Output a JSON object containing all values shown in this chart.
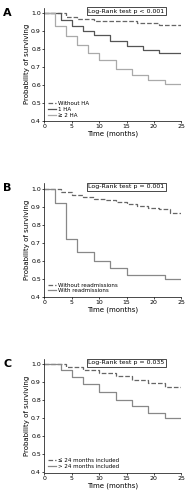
{
  "panel_A": {
    "title": "Log-Rank test p < 0.001",
    "label": "A",
    "ylim": [
      0.4,
      1.03
    ],
    "xlim": [
      0,
      25
    ],
    "xticks": [
      0,
      5,
      10,
      15,
      20,
      25
    ],
    "yticks": [
      0.4,
      0.5,
      0.6,
      0.7,
      0.8,
      0.9,
      1.0
    ],
    "curves": [
      {
        "name": "Without HA",
        "style": "--",
        "color": "#666666",
        "linewidth": 0.9,
        "x": [
          0,
          4,
          4,
          6,
          6,
          9,
          9,
          17,
          17,
          21,
          21,
          25
        ],
        "y": [
          1.0,
          1.0,
          0.975,
          0.975,
          0.965,
          0.965,
          0.955,
          0.955,
          0.945,
          0.945,
          0.935,
          0.935
        ]
      },
      {
        "name": "1 HA",
        "style": "-",
        "color": "#555555",
        "linewidth": 0.9,
        "x": [
          0,
          3,
          3,
          5,
          5,
          7,
          7,
          9,
          9,
          12,
          12,
          15,
          15,
          18,
          18,
          21,
          21,
          25
        ],
        "y": [
          1.0,
          1.0,
          0.96,
          0.96,
          0.93,
          0.93,
          0.9,
          0.9,
          0.875,
          0.875,
          0.845,
          0.845,
          0.815,
          0.815,
          0.795,
          0.795,
          0.775,
          0.775
        ]
      },
      {
        "name": "≥ 2 HA",
        "style": "-",
        "color": "#aaaaaa",
        "linewidth": 0.9,
        "x": [
          0,
          2,
          2,
          4,
          4,
          6,
          6,
          8,
          8,
          10,
          10,
          13,
          13,
          16,
          16,
          19,
          19,
          22,
          22,
          25
        ],
        "y": [
          1.0,
          1.0,
          0.93,
          0.93,
          0.87,
          0.87,
          0.82,
          0.82,
          0.78,
          0.78,
          0.74,
          0.74,
          0.69,
          0.69,
          0.655,
          0.655,
          0.625,
          0.625,
          0.605,
          0.605
        ]
      }
    ],
    "legend_entries": [
      "Without HA",
      "1 HA",
      "≥ 2 HA"
    ],
    "legend_styles": [
      "--",
      "-",
      "-"
    ],
    "legend_colors": [
      "#666666",
      "#555555",
      "#aaaaaa"
    ]
  },
  "panel_B": {
    "title": "Log-Rank test p = 0.001",
    "label": "B",
    "ylim": [
      0.4,
      1.03
    ],
    "xlim": [
      0,
      25
    ],
    "xticks": [
      0,
      5,
      10,
      15,
      20,
      25
    ],
    "yticks": [
      0.4,
      0.5,
      0.6,
      0.7,
      0.8,
      0.9,
      1.0
    ],
    "curves": [
      {
        "name": "Without readmissions",
        "style": "--",
        "color": "#666666",
        "linewidth": 0.9,
        "x": [
          0,
          3,
          3,
          5,
          5,
          7,
          7,
          9,
          9,
          11,
          11,
          13,
          13,
          15,
          15,
          17,
          17,
          19,
          19,
          21,
          21,
          23,
          23,
          25
        ],
        "y": [
          1.0,
          1.0,
          0.98,
          0.98,
          0.965,
          0.965,
          0.955,
          0.955,
          0.945,
          0.945,
          0.935,
          0.935,
          0.925,
          0.925,
          0.915,
          0.915,
          0.905,
          0.905,
          0.895,
          0.895,
          0.885,
          0.885,
          0.865,
          0.865
        ]
      },
      {
        "name": "With readmissions",
        "style": "-",
        "color": "#888888",
        "linewidth": 0.9,
        "x": [
          0,
          2,
          2,
          4,
          4,
          6,
          6,
          9,
          9,
          12,
          12,
          15,
          15,
          22,
          22,
          25
        ],
        "y": [
          1.0,
          1.0,
          0.92,
          0.92,
          0.72,
          0.72,
          0.65,
          0.65,
          0.6,
          0.6,
          0.56,
          0.56,
          0.52,
          0.52,
          0.5,
          0.5
        ]
      }
    ],
    "legend_entries": [
      "Without readmissions",
      "With readmissions"
    ],
    "legend_styles": [
      "--",
      "-"
    ],
    "legend_colors": [
      "#666666",
      "#888888"
    ]
  },
  "panel_C": {
    "title": "Log-Rank test p = 0.035",
    "label": "C",
    "ylim": [
      0.4,
      1.03
    ],
    "xlim": [
      0,
      25
    ],
    "xticks": [
      0,
      5,
      10,
      15,
      20,
      25
    ],
    "yticks": [
      0.4,
      0.5,
      0.6,
      0.7,
      0.8,
      0.9,
      1.0
    ],
    "curves": [
      {
        "name": "≤ 24 months included",
        "style": "--",
        "color": "#666666",
        "linewidth": 0.9,
        "x": [
          0,
          4,
          4,
          7,
          7,
          10,
          10,
          13,
          13,
          16,
          16,
          19,
          19,
          22,
          22,
          25
        ],
        "y": [
          1.0,
          1.0,
          0.985,
          0.985,
          0.97,
          0.97,
          0.955,
          0.955,
          0.935,
          0.935,
          0.915,
          0.915,
          0.895,
          0.895,
          0.875,
          0.875
        ]
      },
      {
        "name": "> 24 months included",
        "style": "-",
        "color": "#888888",
        "linewidth": 0.9,
        "x": [
          0,
          3,
          3,
          5,
          5,
          7,
          7,
          10,
          10,
          13,
          13,
          16,
          16,
          19,
          19,
          22,
          22,
          25
        ],
        "y": [
          1.0,
          1.0,
          0.97,
          0.97,
          0.93,
          0.93,
          0.89,
          0.89,
          0.845,
          0.845,
          0.805,
          0.805,
          0.77,
          0.77,
          0.73,
          0.73,
          0.7,
          0.7
        ]
      }
    ],
    "legend_entries": [
      "≤ 24 months included",
      "> 24 months included"
    ],
    "legend_styles": [
      "--",
      "-"
    ],
    "legend_colors": [
      "#666666",
      "#888888"
    ]
  },
  "ylabel": "Probability of surviving",
  "xlabel": "Time (months)",
  "title_fontsize": 4.5,
  "label_fontsize": 5,
  "tick_fontsize": 4.5,
  "legend_fontsize": 4.0,
  "panel_label_fontsize": 8
}
